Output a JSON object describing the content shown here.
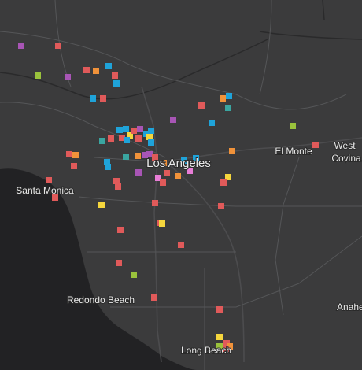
{
  "map": {
    "labels": [
      {
        "text": "Los Angeles"
      },
      {
        "text": "El Monte"
      },
      {
        "lines": [
          "West",
          "Covina"
        ]
      },
      {
        "text": "Santa Monica"
      },
      {
        "text": "Redondo Beach"
      },
      {
        "text": "Anahe"
      },
      {
        "text": "Long Beach"
      }
    ]
  }
}
